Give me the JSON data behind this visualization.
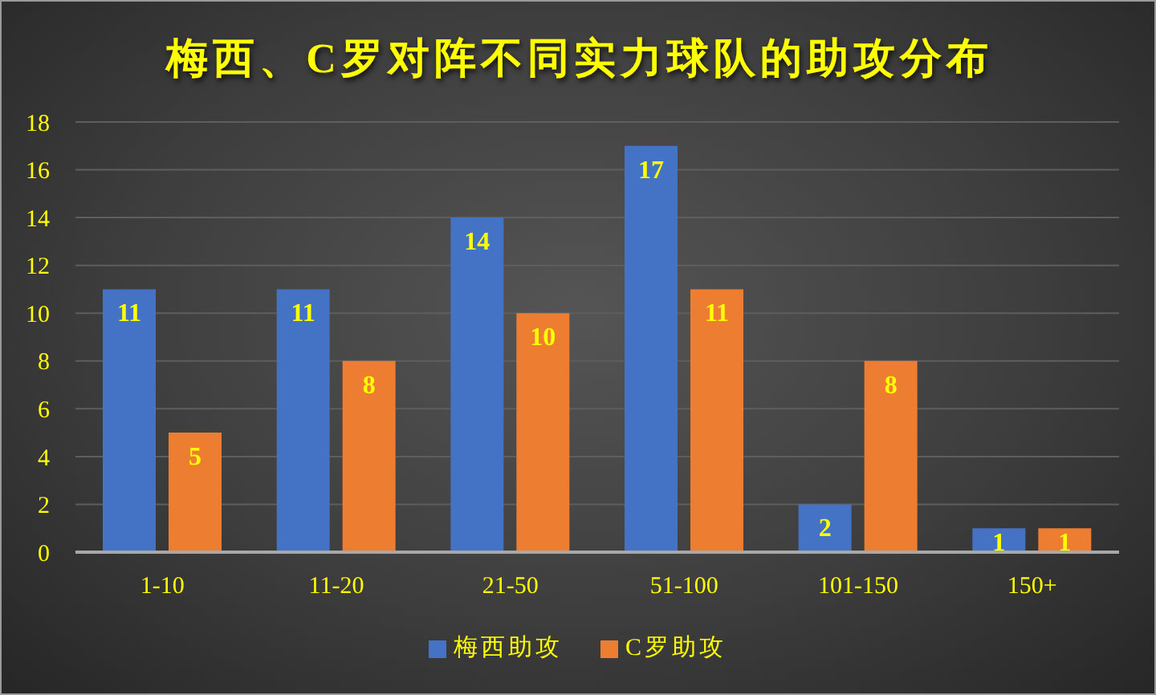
{
  "chart_data": {
    "type": "bar",
    "title": "梅西、C罗对阵不同实力球队的助攻分布",
    "categories": [
      "1-10",
      "11-20",
      "21-50",
      "51-100",
      "101-150",
      "150+"
    ],
    "series": [
      {
        "name": "梅西助攻",
        "color": "#4472c4",
        "values": [
          11,
          11,
          14,
          17,
          2,
          1
        ]
      },
      {
        "name": "C罗助攻",
        "color": "#ed7d31",
        "values": [
          5,
          8,
          10,
          11,
          8,
          1
        ]
      }
    ],
    "ylim": [
      0,
      18
    ],
    "yticks": [
      0,
      2,
      4,
      6,
      8,
      10,
      12,
      14,
      16,
      18
    ],
    "grid": "y",
    "legend": "bottom",
    "data_labels": true
  }
}
